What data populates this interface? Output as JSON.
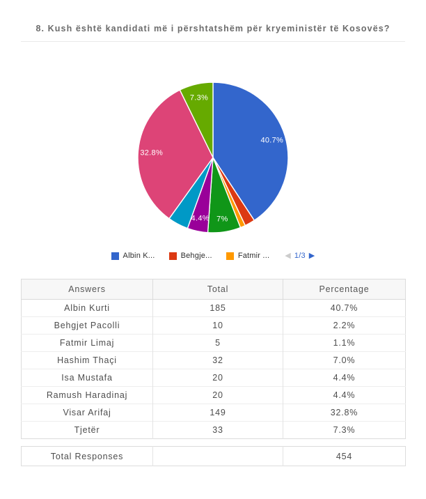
{
  "page": {
    "title": "8. Kush është kandidati më i përshtatshëm për kryeministër të Kosovës?"
  },
  "chart_data": {
    "type": "pie",
    "title": "",
    "labels": [
      "Albin Kurti",
      "Behgjet Pacolli",
      "Fatmir Limaj",
      "Hashim Thaçi",
      "Isa Mustafa",
      "Ramush Haradinaj",
      "Visar Arifaj",
      "Tjetër"
    ],
    "values": [
      185,
      10,
      5,
      32,
      20,
      20,
      149,
      33
    ],
    "percentages": [
      40.7,
      2.2,
      1.1,
      7.0,
      4.4,
      4.4,
      32.8,
      7.3
    ],
    "slice_labels": [
      "40.7%",
      "",
      "",
      "7%",
      "4.4%",
      "",
      "32.8%",
      "7.3%"
    ],
    "colors": [
      "#3366CC",
      "#DC3912",
      "#FF9900",
      "#109618",
      "#990099",
      "#0099C6",
      "#DD4477",
      "#66AA00"
    ],
    "start_angle_deg": 0,
    "direction": "clockwise",
    "legend_position": "bottom",
    "total": 454
  },
  "legend": {
    "items": [
      {
        "label": "Albin K...",
        "color": "#3366CC"
      },
      {
        "label": "Behgje...",
        "color": "#DC3912"
      },
      {
        "label": "Fatmir ...",
        "color": "#FF9900"
      }
    ],
    "pagination": {
      "page_label": "1/3",
      "prev_glyph": "◀",
      "next_glyph": "▶",
      "prev_color": "#cccccc",
      "next_color": "#3366CC",
      "label_color": "#3366CC"
    }
  },
  "table": {
    "headers": {
      "answers": "Answers",
      "total": "Total",
      "percentage": "Percentage"
    },
    "rows": [
      {
        "answer": "Albin Kurti",
        "total": "185",
        "percentage": "40.7%"
      },
      {
        "answer": "Behgjet Pacolli",
        "total": "10",
        "percentage": "2.2%"
      },
      {
        "answer": "Fatmir Limaj",
        "total": "5",
        "percentage": "1.1%"
      },
      {
        "answer": "Hashim Thaçi",
        "total": "32",
        "percentage": "7.0%"
      },
      {
        "answer": "Isa Mustafa",
        "total": "20",
        "percentage": "4.4%"
      },
      {
        "answer": "Ramush Haradinaj",
        "total": "20",
        "percentage": "4.4%"
      },
      {
        "answer": "Visar Arifaj",
        "total": "149",
        "percentage": "32.8%"
      },
      {
        "answer": "Tjetër",
        "total": "33",
        "percentage": "7.3%"
      }
    ],
    "footer": {
      "label": "Total Responses",
      "total": "",
      "value": "454"
    }
  }
}
